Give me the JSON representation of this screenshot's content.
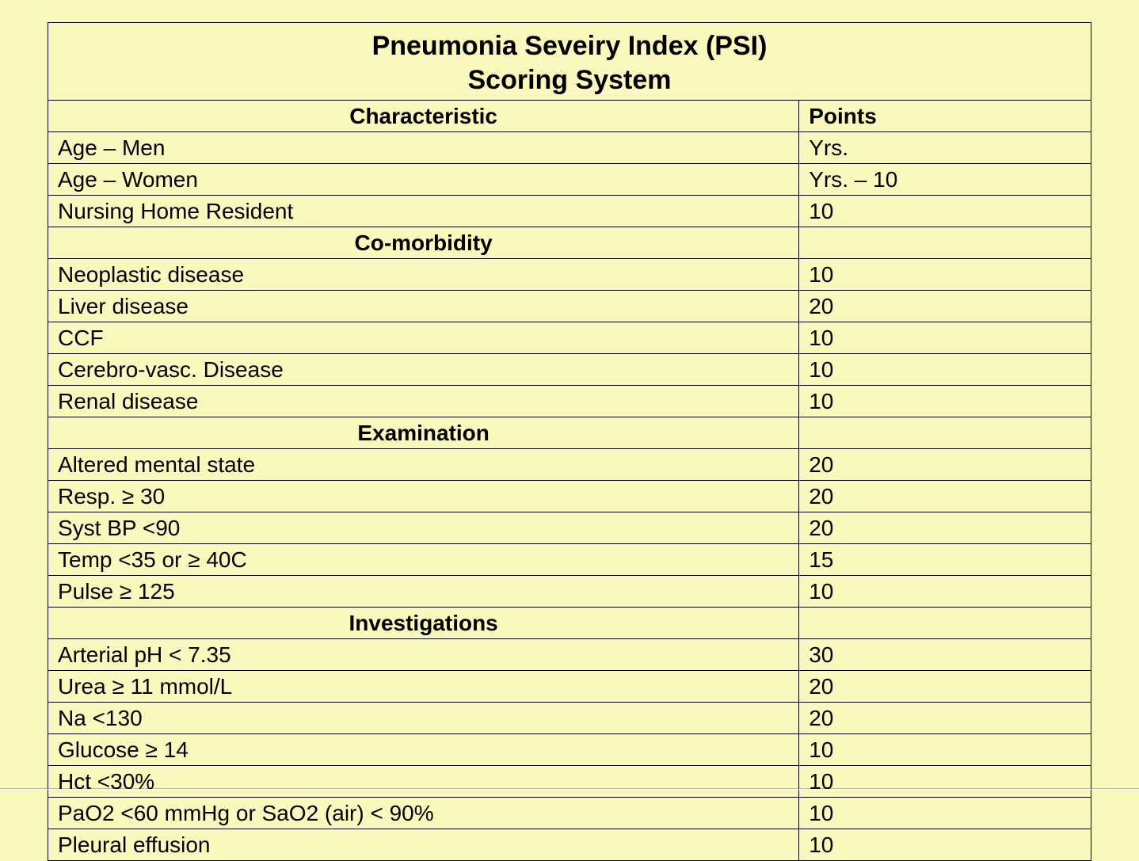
{
  "title_line1": "Pneumonia Seveiry Index (PSI)",
  "title_line2": "Scoring System",
  "columns": {
    "characteristic": "Characteristic",
    "points": "Points"
  },
  "colors": {
    "background": "#fbf8bd",
    "border": "#000000",
    "text": "#000000"
  },
  "typography": {
    "title_fontsize_pt": 26,
    "body_fontsize_pt": 21,
    "font_family": "Verdana"
  },
  "layout": {
    "char_col_width_pct": 72,
    "points_col_width_pct": 28
  },
  "rows": [
    {
      "type": "data",
      "characteristic": "Age – Men",
      "points": "Yrs."
    },
    {
      "type": "data",
      "characteristic": "Age – Women",
      "points": "Yrs. – 10"
    },
    {
      "type": "data",
      "characteristic": "Nursing Home Resident",
      "points": "10"
    },
    {
      "type": "section",
      "label": "Co-morbidity"
    },
    {
      "type": "data",
      "characteristic": "Neoplastic disease",
      "points": "10"
    },
    {
      "type": "data",
      "characteristic": "Liver disease",
      "points": "20"
    },
    {
      "type": "data",
      "characteristic": "CCF",
      "points": "10"
    },
    {
      "type": "data",
      "characteristic": "Cerebro-vasc. Disease",
      "points": "10"
    },
    {
      "type": "data",
      "characteristic": "Renal disease",
      "points": "10"
    },
    {
      "type": "section",
      "label": "Examination"
    },
    {
      "type": "data",
      "characteristic": "Altered mental state",
      "points": "20"
    },
    {
      "type": "data",
      "characteristic": "Resp. ≥ 30",
      "points": "20"
    },
    {
      "type": "data",
      "characteristic": "Syst BP <90",
      "points": "20"
    },
    {
      "type": "data",
      "characteristic": "Temp <35 or ≥ 40C",
      "points": "15"
    },
    {
      "type": "data",
      "characteristic": "Pulse ≥ 125",
      "points": "10"
    },
    {
      "type": "section",
      "label": "Investigations"
    },
    {
      "type": "data",
      "characteristic": "Arterial pH < 7.35",
      "points": "30"
    },
    {
      "type": "data",
      "characteristic": "Urea ≥ 11 mmol/L",
      "points": "20"
    },
    {
      "type": "data",
      "characteristic": "Na <130",
      "points": "20"
    },
    {
      "type": "data",
      "characteristic": "Glucose ≥ 14",
      "points": "10"
    },
    {
      "type": "data",
      "characteristic": "Hct <30%",
      "points": "10"
    },
    {
      "type": "data",
      "characteristic": "PaO2 <60 mmHg or SaO2 (air) < 90%",
      "points": "10"
    },
    {
      "type": "data",
      "characteristic": "Pleural effusion",
      "points": "10"
    }
  ]
}
